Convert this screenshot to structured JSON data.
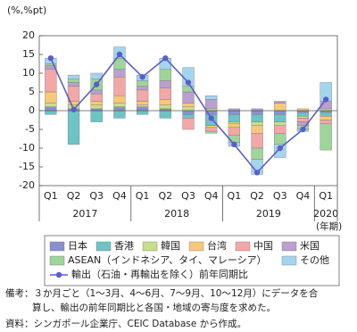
{
  "chart_data": {
    "type": "bar",
    "y_unit": "(%,%pt)",
    "x_unit": "(年期)",
    "categories": [
      "Q1",
      "Q2",
      "Q3",
      "Q4",
      "Q1",
      "Q2",
      "Q3",
      "Q4",
      "Q1",
      "Q2",
      "Q3",
      "Q4",
      "Q1"
    ],
    "years": [
      {
        "label": "2017",
        "span": 4
      },
      {
        "label": "2018",
        "span": 4
      },
      {
        "label": "2019",
        "span": 4
      },
      {
        "label": "2020",
        "span": 1
      }
    ],
    "ylim": [
      -20,
      20
    ],
    "yticks": [
      -20,
      -15,
      -10,
      -5,
      0,
      5,
      10,
      15,
      20
    ],
    "series": [
      {
        "name": "日本",
        "color": "#8b8fd1",
        "values": [
          1,
          0.5,
          0.5,
          1,
          1,
          0.5,
          -1,
          -1,
          -1,
          -1,
          -1,
          -0.5,
          -0.5
        ]
      },
      {
        "name": "香港",
        "color": "#6cc4c4",
        "values": [
          -1,
          -9,
          -3,
          -2,
          -1,
          -2,
          -1,
          -3,
          -2,
          -2,
          -2,
          -1,
          -1
        ]
      },
      {
        "name": "韓国",
        "color": "#c7de8c",
        "values": [
          1,
          1,
          1,
          1,
          0.5,
          1,
          1,
          0.5,
          -0.5,
          -1,
          -1,
          -0.5,
          0.5
        ]
      },
      {
        "name": "台湾",
        "color": "#f8c879",
        "values": [
          3,
          1,
          1,
          2,
          1,
          1.5,
          1,
          -0.5,
          -1,
          -2,
          2,
          0.5,
          -1
        ]
      },
      {
        "name": "中国",
        "color": "#f4a7a7",
        "values": [
          6,
          4,
          2,
          5,
          3,
          3,
          -3,
          -1,
          -2,
          -4,
          -2,
          -1,
          -1
        ]
      },
      {
        "name": "米国",
        "color": "#b9a0cf",
        "values": [
          1,
          1,
          1,
          2,
          1,
          2,
          3,
          2.5,
          0.5,
          0.5,
          0.5,
          -1,
          2
        ]
      },
      {
        "name": "ASEAN（インドネシア、タイ、マレーシア）",
        "color": "#9fd49b",
        "values": [
          0.5,
          1,
          3,
          3,
          1.5,
          3,
          1.5,
          -0.5,
          -2,
          -3,
          -3,
          -1,
          -7
        ]
      },
      {
        "name": "その他",
        "color": "#a4d5ef",
        "values": [
          1.5,
          1,
          1.5,
          3,
          1.5,
          3,
          5,
          1,
          -1,
          -4,
          -3.5,
          -0.5,
          5
        ]
      }
    ],
    "line": {
      "name": "輸出（石油・再輸出を除く）前年同期比",
      "color": "#5b5fc7",
      "values": [
        14,
        0.3,
        7,
        15,
        9,
        14,
        7.5,
        -2,
        -9,
        -16.5,
        -10,
        -5,
        3
      ]
    }
  },
  "notes": [
    "備考：３か月ごと（1～3月、4～6月、7～9月、10～12月）にデータを合",
    "算し、輸出の前年同期比と各国・地域の寄与度を求めた。",
    "資料：シンガポール企業庁、CEIC Database から作成。"
  ]
}
